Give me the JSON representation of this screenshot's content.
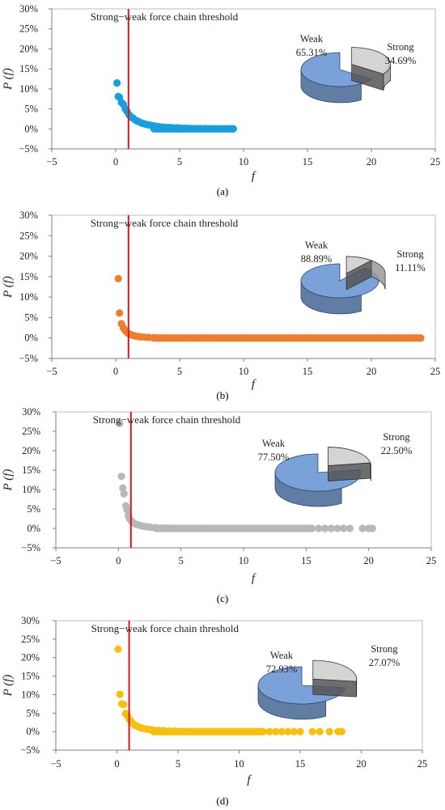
{
  "chart_data": [
    {
      "panel": "(a)",
      "type": "scatter",
      "color": "#1a9fdc",
      "xlabel": "f",
      "ylabel": "P (f)",
      "xlim": [
        -5,
        25
      ],
      "ylim": [
        -5,
        30
      ],
      "x_ticks": [
        "−5",
        "0",
        "5",
        "10",
        "15",
        "20",
        "25"
      ],
      "y_ticks": [
        "−5%",
        "0%",
        "5%",
        "10%",
        "15%",
        "20%",
        "25%",
        "30%"
      ],
      "threshold_x": 1,
      "threshold_label": "Strong−weak force chain threshold",
      "x_max": 9.2,
      "points": [
        [
          0.1,
          11.5
        ],
        [
          0.2,
          8.1
        ],
        [
          0.3,
          7.9
        ],
        [
          0.45,
          6.6
        ],
        [
          0.6,
          6.1
        ],
        [
          0.75,
          5.0
        ],
        [
          0.9,
          4.3
        ],
        [
          1.05,
          3.5
        ],
        [
          1.2,
          3.0
        ],
        [
          1.35,
          2.7
        ],
        [
          1.5,
          2.3
        ],
        [
          1.65,
          2.0
        ],
        [
          1.8,
          1.8
        ],
        [
          2.0,
          1.5
        ],
        [
          2.2,
          1.3
        ],
        [
          2.4,
          1.1
        ],
        [
          2.6,
          1.0
        ],
        [
          2.8,
          0.85
        ],
        [
          3.0,
          0.75
        ],
        [
          3.3,
          0.6
        ],
        [
          3.6,
          0.5
        ],
        [
          3.9,
          0.42
        ],
        [
          4.2,
          0.36
        ],
        [
          4.5,
          0.3
        ],
        [
          4.8,
          0.26
        ],
        [
          5.1,
          0.22
        ],
        [
          5.4,
          0.18
        ],
        [
          5.7,
          0.15
        ],
        [
          6.0,
          0.12
        ],
        [
          6.3,
          0.1
        ],
        [
          6.6,
          0.08
        ],
        [
          7.0,
          0.06
        ],
        [
          7.5,
          0.04
        ],
        [
          8.3,
          0.02
        ],
        [
          8.6,
          0.02
        ],
        [
          9.2,
          0.01
        ]
      ],
      "pie": {
        "type": "pie",
        "slices": [
          {
            "label": "Weak",
            "percent_text": "65.31%",
            "value": 65.31,
            "color": "#6f9ad6"
          },
          {
            "label": "Strong",
            "percent_text": "34.69%",
            "value": 34.69,
            "color": "#d0d0d0"
          }
        ]
      }
    },
    {
      "panel": "(b)",
      "type": "scatter",
      "color": "#ee7d2e",
      "xlabel": "f",
      "ylabel": "P (f)",
      "xlim": [
        -5,
        25
      ],
      "ylim": [
        -5,
        30
      ],
      "x_ticks": [
        "−5",
        "0",
        "5",
        "10",
        "15",
        "20",
        "25"
      ],
      "y_ticks": [
        "−5%",
        "0%",
        "5%",
        "10%",
        "15%",
        "20%",
        "25%",
        "30%"
      ],
      "threshold_x": 1,
      "threshold_label": "Strong−weak force chain threshold",
      "x_max": 24.0,
      "points": [
        [
          0.2,
          14.5
        ],
        [
          0.3,
          6.1
        ],
        [
          0.45,
          3.5
        ],
        [
          0.6,
          2.5
        ],
        [
          0.75,
          1.8
        ],
        [
          0.9,
          1.3
        ],
        [
          1.05,
          1.0
        ],
        [
          1.2,
          0.8
        ],
        [
          1.4,
          0.6
        ],
        [
          1.6,
          0.45
        ],
        [
          1.8,
          0.35
        ],
        [
          2.0,
          0.28
        ],
        [
          2.3,
          0.2
        ],
        [
          2.6,
          0.15
        ],
        [
          3.0,
          0.1
        ]
      ],
      "pie": {
        "type": "pie",
        "slices": [
          {
            "label": "Weak",
            "percent_text": "88.89%",
            "value": 88.89,
            "color": "#6f9ad6"
          },
          {
            "label": "Strong",
            "percent_text": "11.11%",
            "value": 11.11,
            "color": "#d0d0d0"
          }
        ]
      }
    },
    {
      "panel": "(c)",
      "type": "scatter",
      "color": "#b8b8b8",
      "xlabel": "f",
      "ylabel": "P (f)",
      "xlim": [
        -5,
        25
      ],
      "ylim": [
        -5,
        30
      ],
      "x_ticks": [
        "−5",
        "0",
        "5",
        "10",
        "15",
        "20",
        "25"
      ],
      "y_ticks": [
        "−5%",
        "0%",
        "5%",
        "10%",
        "15%",
        "20%",
        "25%",
        "30%"
      ],
      "threshold_x": 1,
      "threshold_label": "Strong−weak force chain threshold",
      "x_max": 15.5,
      "points": [
        [
          0.1,
          27.0
        ],
        [
          0.25,
          13.4
        ],
        [
          0.35,
          10.4
        ],
        [
          0.45,
          8.9
        ],
        [
          0.6,
          5.8
        ],
        [
          0.7,
          4.8
        ],
        [
          0.8,
          3.2
        ],
        [
          0.9,
          2.5
        ],
        [
          1.05,
          1.8
        ],
        [
          1.2,
          1.4
        ],
        [
          1.4,
          1.1
        ],
        [
          1.6,
          0.9
        ],
        [
          1.8,
          0.7
        ],
        [
          2.0,
          0.55
        ],
        [
          2.3,
          0.4
        ],
        [
          2.6,
          0.3
        ],
        [
          3.0,
          0.2
        ],
        [
          3.5,
          0.12
        ],
        [
          4.0,
          0.08
        ],
        [
          16.0,
          0.0
        ],
        [
          16.5,
          0.0
        ],
        [
          17.0,
          0.0
        ],
        [
          17.5,
          0.0
        ],
        [
          18.0,
          0.0
        ],
        [
          18.5,
          0.0
        ],
        [
          19.5,
          0.0
        ],
        [
          20.0,
          0.0
        ],
        [
          20.3,
          0.0
        ]
      ],
      "pie": {
        "type": "pie",
        "slices": [
          {
            "label": "Weak",
            "percent_text": "77.50%",
            "value": 77.5,
            "color": "#6f9ad6"
          },
          {
            "label": "Strong",
            "percent_text": "22.50%",
            "value": 22.5,
            "color": "#d0d0d0"
          }
        ]
      }
    },
    {
      "panel": "(d)",
      "type": "scatter",
      "color": "#f5c010",
      "xlabel": "f",
      "ylabel": "P (f)",
      "xlim": [
        -5,
        25
      ],
      "ylim": [
        -5,
        30
      ],
      "x_ticks": [
        "−5",
        "0",
        "5",
        "10",
        "15",
        "20",
        "25"
      ],
      "y_ticks": [
        "−5%",
        "0%",
        "5%",
        "10%",
        "15%",
        "20%",
        "25%",
        "30%"
      ],
      "threshold_x": 1,
      "threshold_label": "Strong−weak force chain threshold",
      "x_max": 12.0,
      "points": [
        [
          0.1,
          22.3
        ],
        [
          0.25,
          10.1
        ],
        [
          0.4,
          7.5
        ],
        [
          0.55,
          7.3
        ],
        [
          0.7,
          4.9
        ],
        [
          0.85,
          4.3
        ],
        [
          1.0,
          3.4
        ],
        [
          1.15,
          2.8
        ],
        [
          1.3,
          2.2
        ],
        [
          1.5,
          1.7
        ],
        [
          1.7,
          1.4
        ],
        [
          1.9,
          1.1
        ],
        [
          2.1,
          0.9
        ],
        [
          2.4,
          0.7
        ],
        [
          2.7,
          0.55
        ],
        [
          3.0,
          0.45
        ],
        [
          3.4,
          0.35
        ],
        [
          3.8,
          0.27
        ],
        [
          4.3,
          0.2
        ],
        [
          4.8,
          0.15
        ],
        [
          5.5,
          0.1
        ],
        [
          12.5,
          0.0
        ],
        [
          13.0,
          0.0
        ],
        [
          13.5,
          0.0
        ],
        [
          14.0,
          0.0
        ],
        [
          14.5,
          0.0
        ],
        [
          15.0,
          0.0
        ],
        [
          16.0,
          0.0
        ],
        [
          16.6,
          0.0
        ],
        [
          17.4,
          0.0
        ],
        [
          18.1,
          0.0
        ],
        [
          18.4,
          0.0
        ]
      ],
      "pie": {
        "type": "pie",
        "slices": [
          {
            "label": "Weak",
            "percent_text": "72.93%",
            "value": 72.93,
            "color": "#6f9ad6"
          },
          {
            "label": "Strong",
            "percent_text": "27.07%",
            "value": 27.07,
            "color": "#d0d0d0"
          }
        ]
      }
    }
  ]
}
